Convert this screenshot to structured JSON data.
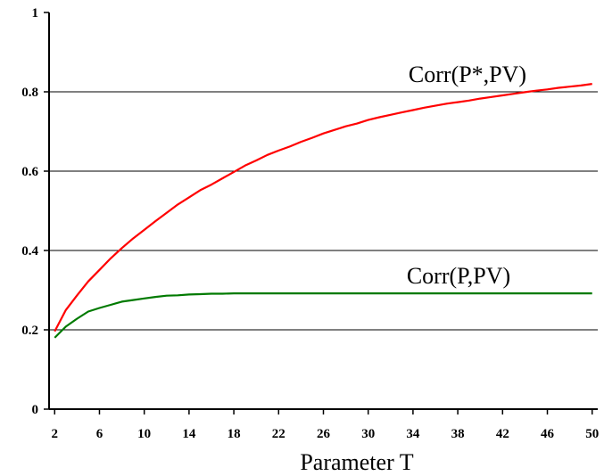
{
  "chart_data": {
    "type": "line",
    "title": "",
    "xlabel": "Parameter T",
    "ylabel": "",
    "xlim": [
      1.5,
      50.5
    ],
    "ylim": [
      0,
      1
    ],
    "x_ticks": [
      2,
      6,
      10,
      14,
      18,
      22,
      26,
      30,
      34,
      38,
      42,
      46,
      50
    ],
    "x_tick_labels": [
      "2",
      "6",
      "10",
      "14",
      "18",
      "22",
      "26",
      "30",
      "34",
      "38",
      "42",
      "46",
      "50"
    ],
    "y_ticks": [
      0,
      0.2,
      0.4,
      0.6,
      0.8,
      1
    ],
    "y_tick_labels": [
      "0",
      "0.2",
      "0.4",
      "0.6",
      "0.8",
      "1"
    ],
    "grid": "horizontal major lines",
    "legend": "none; series labelled directly on plot",
    "x": [
      2,
      3,
      4,
      5,
      6,
      7,
      8,
      9,
      10,
      11,
      12,
      13,
      14,
      15,
      16,
      17,
      18,
      19,
      20,
      21,
      22,
      23,
      24,
      25,
      26,
      27,
      28,
      29,
      30,
      31,
      32,
      33,
      34,
      35,
      36,
      37,
      38,
      39,
      40,
      41,
      42,
      43,
      44,
      45,
      46,
      47,
      48,
      49,
      50
    ],
    "series": [
      {
        "name": "Corr(P*,PV)",
        "color": "#ff0000",
        "values": [
          0.196,
          0.25,
          0.287,
          0.322,
          0.351,
          0.38,
          0.406,
          0.43,
          0.452,
          0.474,
          0.495,
          0.516,
          0.534,
          0.552,
          0.566,
          0.582,
          0.598,
          0.614,
          0.627,
          0.641,
          0.652,
          0.662,
          0.674,
          0.684,
          0.695,
          0.704,
          0.713,
          0.72,
          0.729,
          0.736,
          0.742,
          0.748,
          0.754,
          0.76,
          0.765,
          0.77,
          0.774,
          0.778,
          0.783,
          0.787,
          0.791,
          0.795,
          0.799,
          0.803,
          0.806,
          0.81,
          0.813,
          0.816,
          0.82
        ]
      },
      {
        "name": "Corr(P,PV)",
        "color": "#007a00",
        "values": [
          0.18,
          0.208,
          0.228,
          0.246,
          0.255,
          0.263,
          0.271,
          0.275,
          0.279,
          0.283,
          0.286,
          0.287,
          0.289,
          0.29,
          0.291,
          0.291,
          0.292,
          0.292,
          0.292,
          0.292,
          0.292,
          0.292,
          0.292,
          0.292,
          0.292,
          0.292,
          0.292,
          0.292,
          0.292,
          0.292,
          0.292,
          0.292,
          0.292,
          0.292,
          0.292,
          0.292,
          0.292,
          0.292,
          0.292,
          0.292,
          0.292,
          0.292,
          0.292,
          0.292,
          0.292,
          0.292,
          0.292,
          0.292,
          0.292
        ]
      }
    ]
  }
}
